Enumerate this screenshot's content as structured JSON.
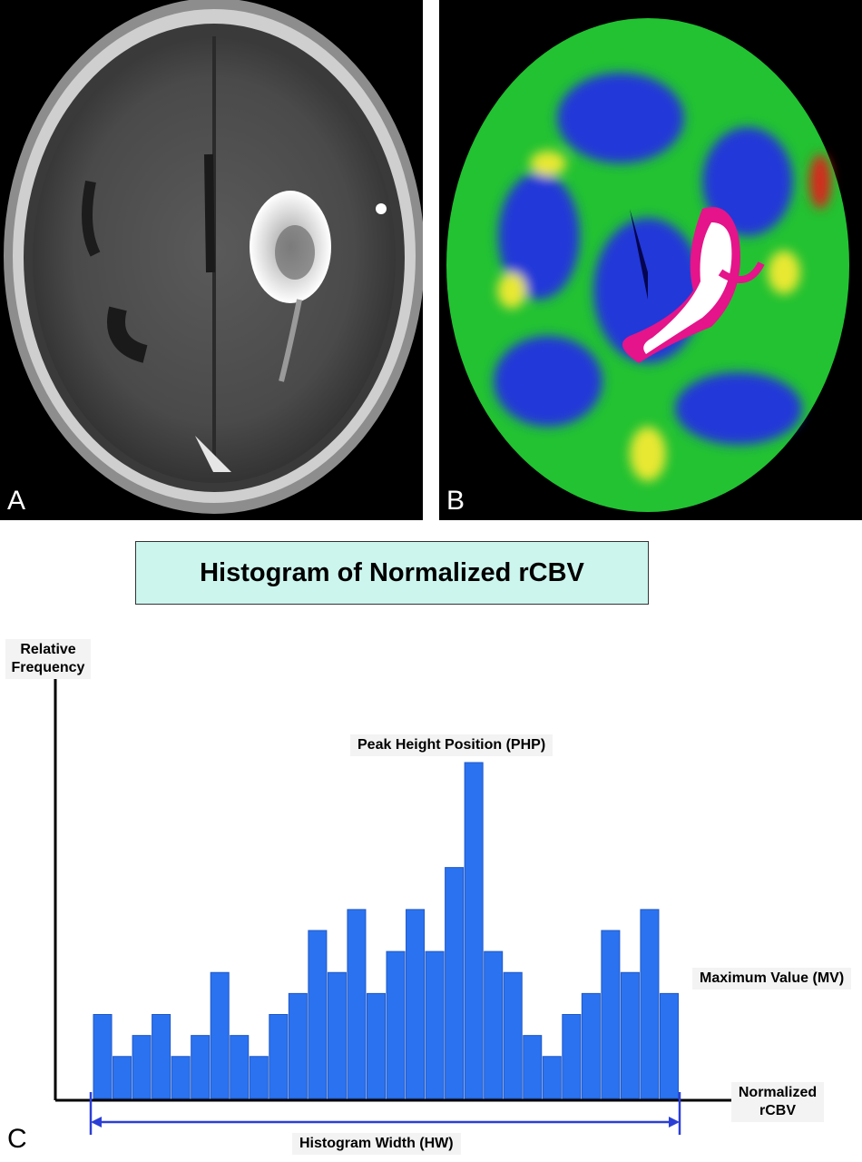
{
  "panels": {
    "a": {
      "letter": "A"
    },
    "b": {
      "letter": "B"
    },
    "c": {
      "letter": "C"
    }
  },
  "chart_data": {
    "type": "bar",
    "title": "Histogram of Normalized rCBV",
    "ylabel": "Relative Frequency",
    "xlabel": "Normalized rCBV",
    "values": [
      4,
      2,
      3,
      4,
      2,
      3,
      6,
      3,
      2,
      4,
      5,
      8,
      6,
      9,
      5,
      7,
      9,
      7,
      11,
      16,
      7,
      6,
      3,
      2,
      4,
      5,
      8,
      6,
      9,
      5
    ],
    "ylim": [
      0,
      16
    ],
    "annotations": {
      "peak": "Peak Height Position (PHP)",
      "max": "Maximum Value (MV)",
      "width": "Histogram Width (HW)"
    },
    "colors": {
      "bar": "#2a72f0",
      "bar_edge": "#2158c6",
      "axis": "#000000",
      "hw_arrow": "#2b3fd6",
      "title_bg": "#ccf5ee"
    },
    "grid": false
  }
}
